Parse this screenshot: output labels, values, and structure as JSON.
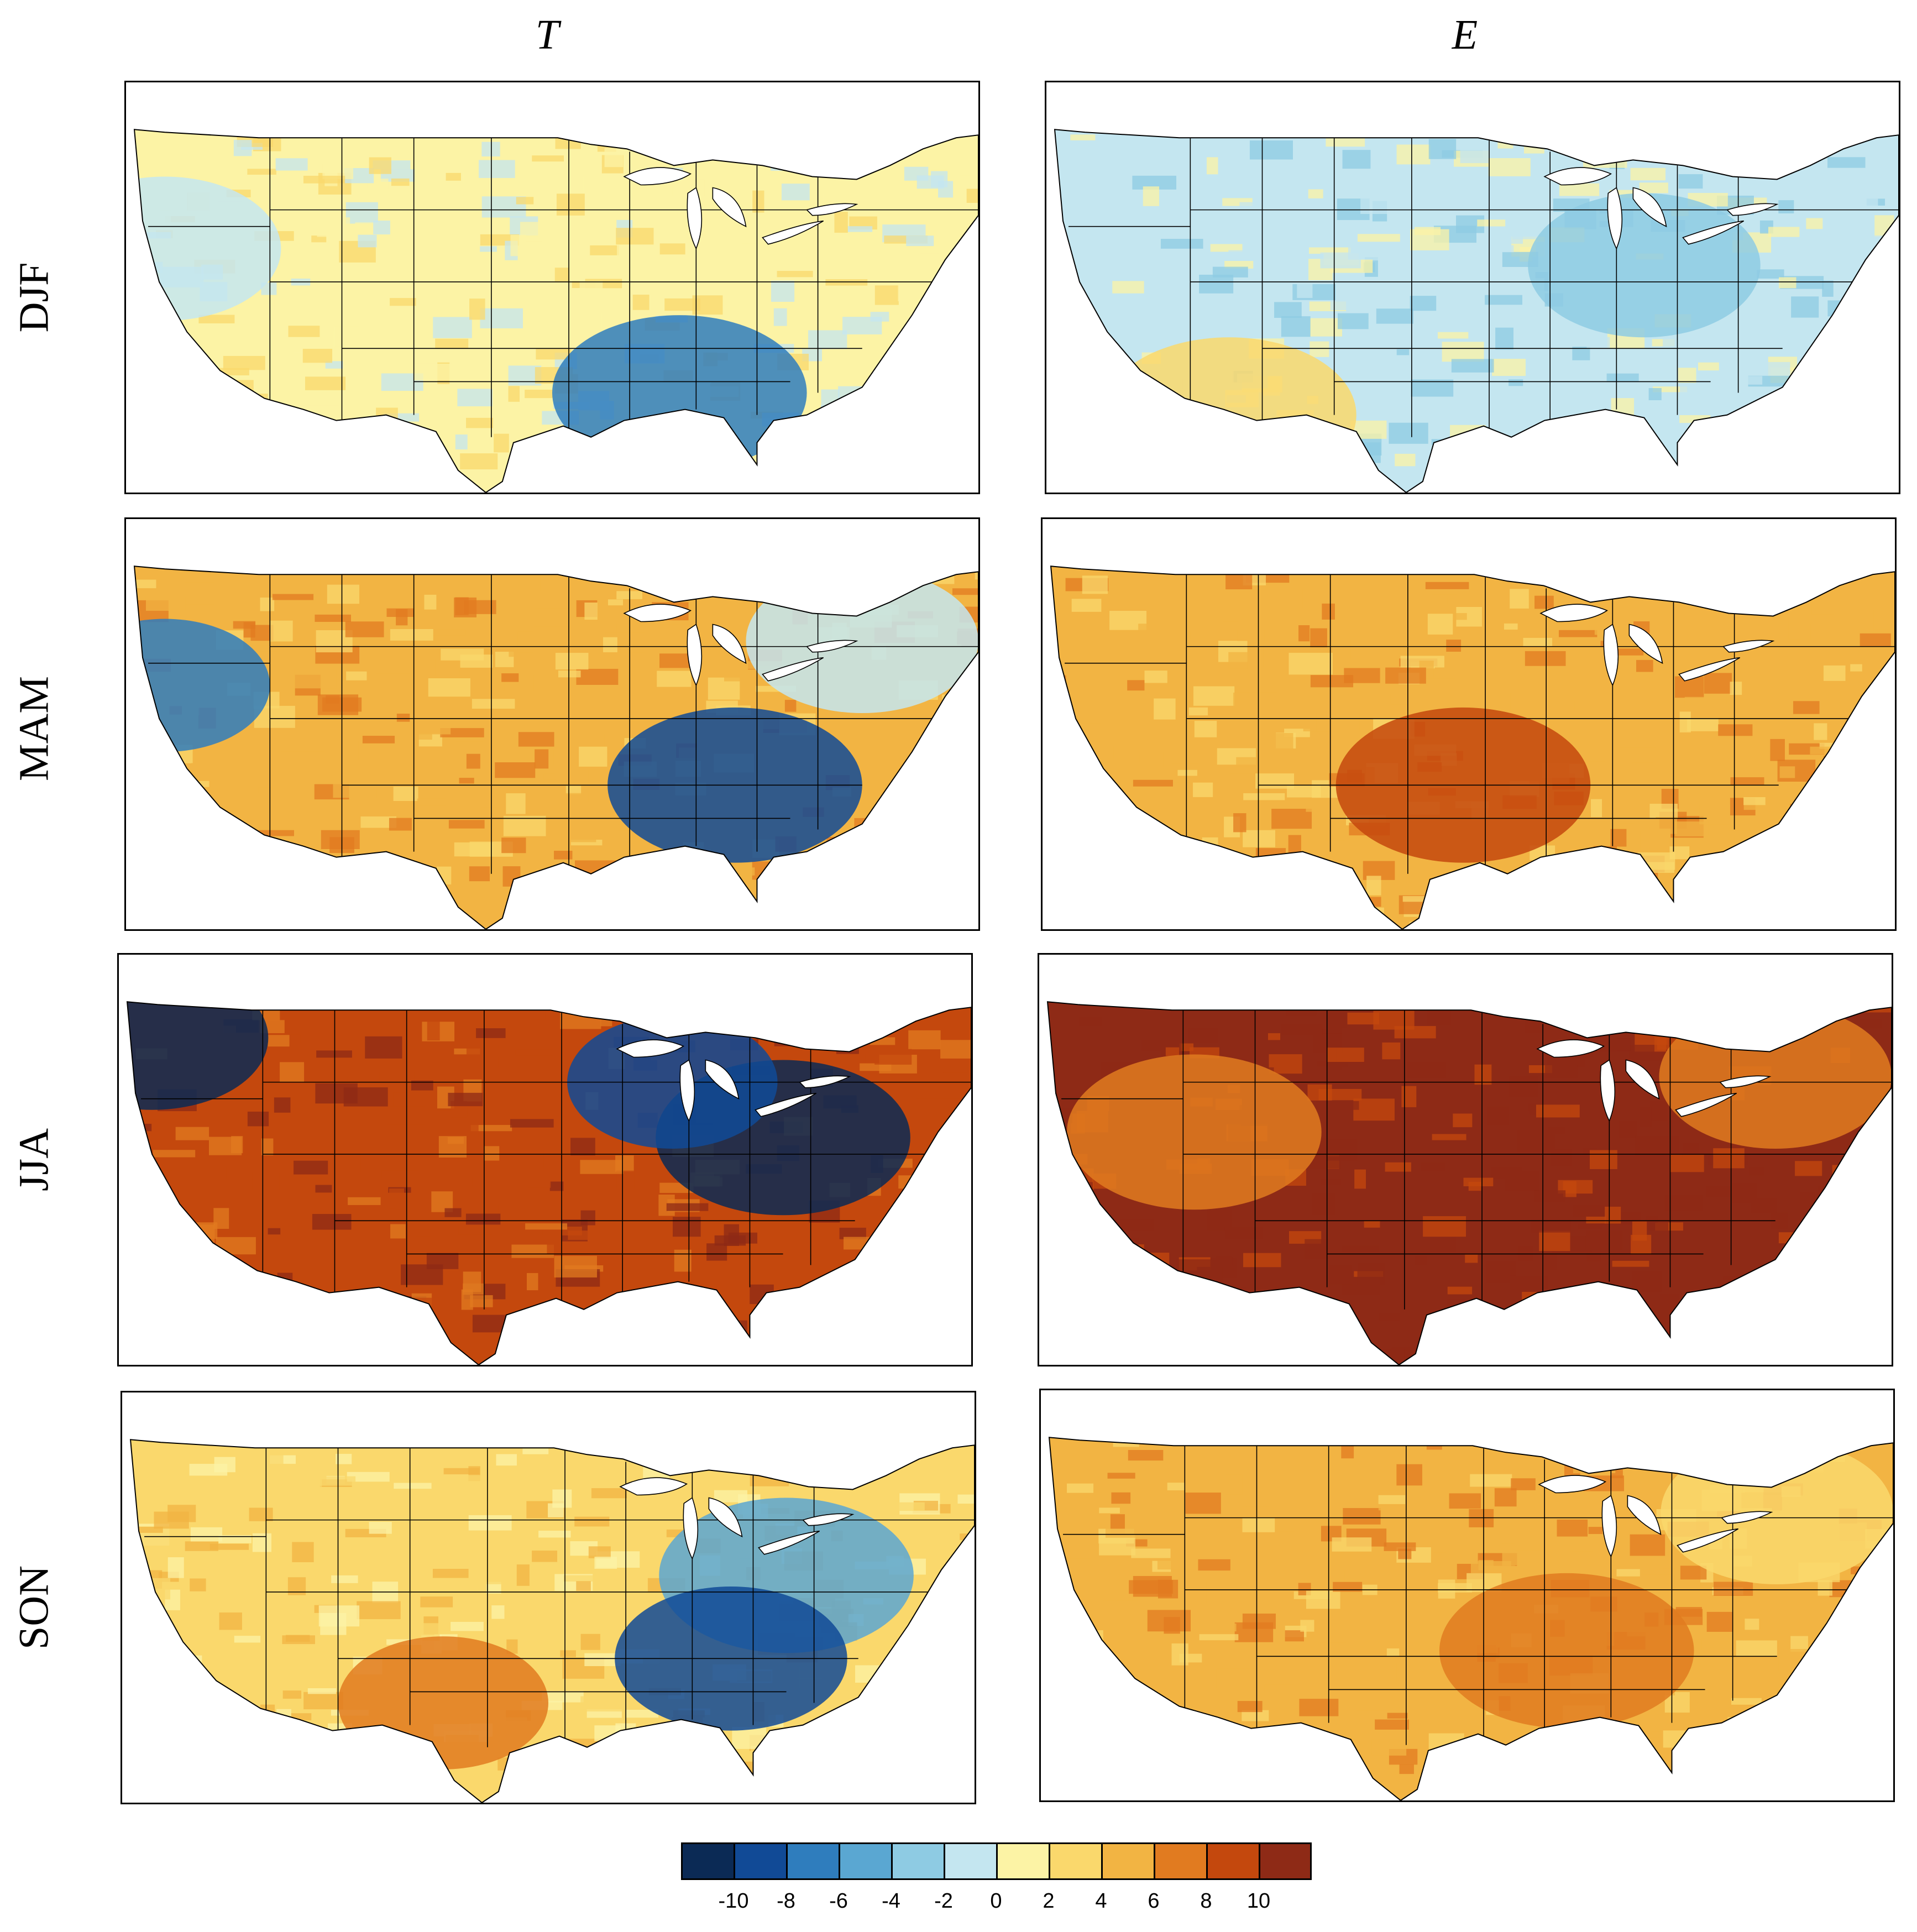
{
  "columns": [
    {
      "key": "T",
      "title": "T"
    },
    {
      "key": "E",
      "title": "E"
    }
  ],
  "rows": [
    {
      "key": "DJF",
      "label": "DJF"
    },
    {
      "key": "MAM",
      "label": "MAM"
    },
    {
      "key": "JJA",
      "label": "JJA"
    },
    {
      "key": "SON",
      "label": "SON"
    }
  ],
  "colorbar": {
    "colors": [
      "#0b2a55",
      "#114a96",
      "#2f7dbd",
      "#5aa7d2",
      "#8ecbe3",
      "#c4e6f0",
      "#fcf3a5",
      "#fad86c",
      "#f2b443",
      "#e17b20",
      "#c4480d",
      "#8e2a16"
    ],
    "ticks": [
      "-10",
      "-8",
      "-6",
      "-4",
      "-2",
      "0",
      "2",
      "4",
      "6",
      "8",
      "10"
    ]
  },
  "panels": {
    "T-DJF": {
      "variable": "T",
      "season": "DJF",
      "dominant_class": 6,
      "anomalies": [
        {
          "region": "southeast-gulf",
          "class": 2
        },
        {
          "region": "west-coast",
          "class": 5
        }
      ]
    },
    "E-DJF": {
      "variable": "E",
      "season": "DJF",
      "dominant_class": 5,
      "anomalies": [
        {
          "region": "southwest",
          "class": 7
        },
        {
          "region": "ohio-valley",
          "class": 4
        }
      ]
    },
    "T-MAM": {
      "variable": "T",
      "season": "MAM",
      "dominant_class": 8,
      "anomalies": [
        {
          "region": "southeast",
          "class": 1
        },
        {
          "region": "northeast",
          "class": 5
        },
        {
          "region": "west-coast",
          "class": 2
        }
      ]
    },
    "E-MAM": {
      "variable": "E",
      "season": "MAM",
      "dominant_class": 8,
      "anomalies": [
        {
          "region": "southern-plains",
          "class": 10
        }
      ]
    },
    "T-JJA": {
      "variable": "T",
      "season": "JJA",
      "dominant_class": 10,
      "anomalies": [
        {
          "region": "east",
          "class": 0
        },
        {
          "region": "pacific-northwest",
          "class": 0
        },
        {
          "region": "great-lakes",
          "class": 1
        }
      ]
    },
    "E-JJA": {
      "variable": "E",
      "season": "JJA",
      "dominant_class": 11,
      "anomalies": [
        {
          "region": "west",
          "class": 9
        },
        {
          "region": "northeast",
          "class": 9
        }
      ]
    },
    "T-SON": {
      "variable": "T",
      "season": "SON",
      "dominant_class": 7,
      "anomalies": [
        {
          "region": "east",
          "class": 3
        },
        {
          "region": "southeast",
          "class": 1
        },
        {
          "region": "southwest-texas",
          "class": 9
        }
      ]
    },
    "E-SON": {
      "variable": "E",
      "season": "SON",
      "dominant_class": 8,
      "anomalies": [
        {
          "region": "south-central",
          "class": 9
        },
        {
          "region": "northeast",
          "class": 7
        }
      ]
    }
  }
}
